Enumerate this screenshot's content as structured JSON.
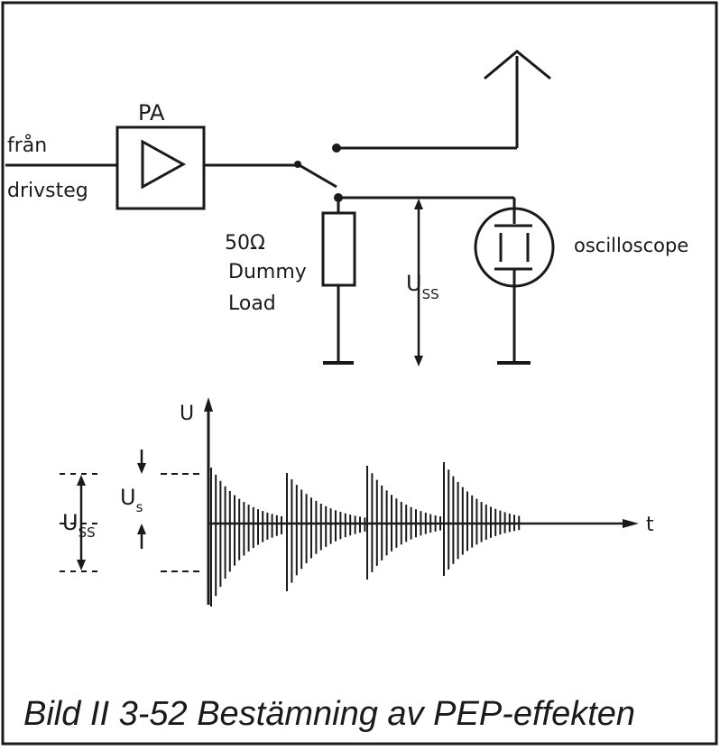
{
  "labels": {
    "fran": "från",
    "drivsteg": "drivsteg",
    "pa": "PA",
    "resistance": "50Ω",
    "dummy": "Dummy",
    "load": "Load",
    "uss_main": "U",
    "uss_main_sub": "SS",
    "oscilloscope": "oscilloscope",
    "axis_u": "U",
    "axis_t": "t",
    "uss_left": "U",
    "uss_left_sub": "SS",
    "us": "U",
    "us_sub": "s"
  },
  "caption": "Bild II 3-52  Bestämning av PEP-effekten",
  "colors": {
    "ink": "#1a1a1a",
    "background": "#ffffff"
  }
}
